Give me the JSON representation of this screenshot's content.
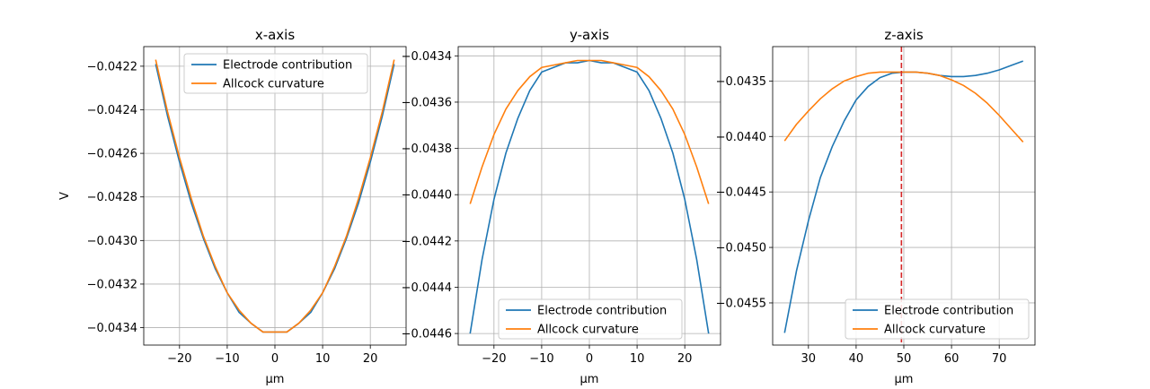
{
  "figure": {
    "background": "#ffffff",
    "colors": {
      "series1": "#1f77b4",
      "series2": "#ff7f0e",
      "marker": "#d62728",
      "grid": "#b0b0b0"
    }
  },
  "chart_data": [
    {
      "type": "line",
      "title": "x-axis",
      "xlabel": "µm",
      "ylabel": "V",
      "xlim": [
        -27.5,
        27.5
      ],
      "ylim": [
        -0.04348,
        -0.04211
      ],
      "xticks": [
        -20,
        -10,
        0,
        10,
        20
      ],
      "xtick_labels": [
        "−20",
        "−10",
        "0",
        "10",
        "20"
      ],
      "yticks": [
        -0.0434,
        -0.0432,
        -0.043,
        -0.0428,
        -0.0426,
        -0.0424,
        -0.0422
      ],
      "ytick_labels": [
        "−0.0434",
        "−0.0432",
        "−0.0430",
        "−0.0428",
        "−0.0426",
        "−0.0424",
        "−0.0422"
      ],
      "grid": true,
      "legend": "upper center",
      "x": [
        -25,
        -22.5,
        -20,
        -17.5,
        -15,
        -12.5,
        -10,
        -7.5,
        -5,
        -2.5,
        0,
        2.5,
        5,
        7.5,
        10,
        12.5,
        15,
        17.5,
        20,
        22.5,
        25
      ],
      "series": [
        {
          "name": "Electrode contribution",
          "color": "#1f77b4",
          "values": [
            -0.04219,
            -0.04243,
            -0.04264,
            -0.04283,
            -0.04299,
            -0.04313,
            -0.04324,
            -0.04333,
            -0.04338,
            -0.04342,
            -0.04342,
            -0.04342,
            -0.04338,
            -0.04333,
            -0.04324,
            -0.04313,
            -0.04299,
            -0.04283,
            -0.04264,
            -0.04243,
            -0.04219
          ]
        },
        {
          "name": "Allcock curvature",
          "color": "#ff7f0e",
          "values": [
            -0.04217,
            -0.04241,
            -0.04262,
            -0.04281,
            -0.04298,
            -0.04312,
            -0.04324,
            -0.04332,
            -0.04338,
            -0.04342,
            -0.04342,
            -0.04342,
            -0.04338,
            -0.04332,
            -0.04324,
            -0.04312,
            -0.04298,
            -0.04281,
            -0.04262,
            -0.04241,
            -0.04217
          ]
        }
      ]
    },
    {
      "type": "line",
      "title": "y-axis",
      "xlabel": "µm",
      "ylabel": "",
      "xlim": [
        -27.5,
        27.5
      ],
      "ylim": [
        -0.04465,
        -0.04336
      ],
      "xticks": [
        -20,
        -10,
        0,
        10,
        20
      ],
      "xtick_labels": [
        "−20",
        "−10",
        "0",
        "10",
        "20"
      ],
      "yticks": [
        -0.0446,
        -0.0444,
        -0.0442,
        -0.044,
        -0.0438,
        -0.0436,
        -0.0434
      ],
      "ytick_labels": [
        "−0.0446",
        "−0.0444",
        "−0.0442",
        "−0.0440",
        "−0.0438",
        "−0.0436",
        "−0.0434"
      ],
      "grid": true,
      "legend": "lower center",
      "x": [
        -25,
        -22.5,
        -20,
        -17.5,
        -15,
        -12.5,
        -10,
        -7.5,
        -5,
        -2.5,
        0,
        2.5,
        5,
        7.5,
        10,
        12.5,
        15,
        17.5,
        20,
        22.5,
        25
      ],
      "series": [
        {
          "name": "Electrode contribution",
          "color": "#1f77b4",
          "values": [
            -0.0446,
            -0.04428,
            -0.04402,
            -0.04382,
            -0.04367,
            -0.04355,
            -0.04347,
            -0.04345,
            -0.04343,
            -0.04343,
            -0.04342,
            -0.04343,
            -0.04343,
            -0.04345,
            -0.04347,
            -0.04355,
            -0.04367,
            -0.04382,
            -0.04402,
            -0.04428,
            -0.0446
          ]
        },
        {
          "name": "Allcock curvature",
          "color": "#ff7f0e",
          "values": [
            -0.04404,
            -0.04388,
            -0.04374,
            -0.04363,
            -0.04355,
            -0.04349,
            -0.04345,
            -0.04344,
            -0.04343,
            -0.04342,
            -0.04342,
            -0.04342,
            -0.04343,
            -0.04344,
            -0.04345,
            -0.04349,
            -0.04355,
            -0.04363,
            -0.04374,
            -0.04388,
            -0.04404
          ]
        }
      ]
    },
    {
      "type": "line",
      "title": "z-axis",
      "xlabel": "µm",
      "ylabel": "",
      "xlim": [
        22.5,
        77.5
      ],
      "ylim": [
        -0.04588,
        -0.04319
      ],
      "xticks": [
        30,
        40,
        50,
        60,
        70
      ],
      "xtick_labels": [
        "30",
        "40",
        "50",
        "60",
        "70"
      ],
      "yticks": [
        -0.0455,
        -0.045,
        -0.0445,
        -0.044,
        -0.0435
      ],
      "ytick_labels": [
        "−0.0455",
        "−0.0450",
        "−0.0445",
        "−0.0440",
        "−0.0435"
      ],
      "grid": true,
      "legend": "lower right",
      "vline": {
        "x": 49.5,
        "color": "#d62728",
        "style": "dashed"
      },
      "x": [
        25,
        27.5,
        30,
        32.5,
        35,
        37.5,
        40,
        42.5,
        45,
        47.5,
        50,
        52.5,
        55,
        57.5,
        60,
        62.5,
        65,
        67.5,
        70,
        72.5,
        75
      ],
      "series": [
        {
          "name": "Electrode contribution",
          "color": "#1f77b4",
          "values": [
            -0.04577,
            -0.04521,
            -0.04476,
            -0.04437,
            -0.04409,
            -0.04386,
            -0.04367,
            -0.04355,
            -0.04347,
            -0.04343,
            -0.04342,
            -0.04342,
            -0.04343,
            -0.04345,
            -0.04346,
            -0.04346,
            -0.04345,
            -0.04343,
            -0.0434,
            -0.04336,
            -0.04332
          ]
        },
        {
          "name": "Allcock curvature",
          "color": "#ff7f0e",
          "values": [
            -0.04404,
            -0.04389,
            -0.04377,
            -0.04366,
            -0.04357,
            -0.0435,
            -0.04346,
            -0.04343,
            -0.04342,
            -0.04342,
            -0.04342,
            -0.04342,
            -0.04343,
            -0.04345,
            -0.04349,
            -0.04354,
            -0.04361,
            -0.0437,
            -0.04381,
            -0.04393,
            -0.04405
          ]
        }
      ]
    }
  ]
}
